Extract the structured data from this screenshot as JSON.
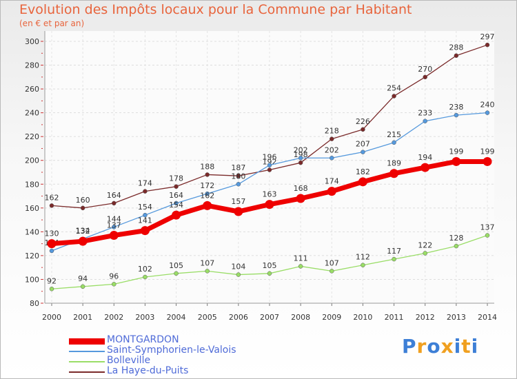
{
  "chart_data": {
    "type": "line",
    "title": "Evolution des Impôts locaux pour la Commune par Habitant",
    "subtitle": "(en € et par an)",
    "xlabel": "",
    "ylabel": "",
    "x": [
      2000,
      2001,
      2002,
      2003,
      2004,
      2005,
      2006,
      2007,
      2008,
      2009,
      2010,
      2011,
      2012,
      2013,
      2014
    ],
    "ylim": [
      80,
      300
    ],
    "yticks": [
      80,
      100,
      120,
      140,
      160,
      180,
      200,
      220,
      240,
      260,
      280,
      300
    ],
    "grid": true,
    "legend_position": "bottom-left",
    "series": [
      {
        "name": "MONTGARDON",
        "color": "#ee0000",
        "values": [
          130,
          132,
          137,
          141,
          154,
          162,
          157,
          163,
          168,
          174,
          182,
          189,
          194,
          199,
          199
        ]
      },
      {
        "name": "Saint-Symphorien-le-Valois",
        "color": "#5599dd",
        "values": [
          124,
          134,
          144,
          154,
          164,
          172,
          180,
          196,
          202,
          202,
          207,
          215,
          233,
          238,
          240
        ]
      },
      {
        "name": "Bolleville",
        "color": "#99dd66",
        "values": [
          92,
          94,
          96,
          102,
          105,
          107,
          104,
          105,
          111,
          107,
          112,
          117,
          122,
          128,
          137
        ]
      },
      {
        "name": "La Haye-du-Puits",
        "color": "#7a2a2a",
        "values": [
          162,
          160,
          164,
          174,
          178,
          188,
          187,
          192,
          198,
          218,
          226,
          254,
          270,
          288,
          297
        ]
      }
    ]
  },
  "logo": {
    "letters": [
      "P",
      "r",
      "o",
      "x",
      "i",
      "t",
      "i"
    ],
    "colors": [
      "#3d7fd6",
      "#f0a020",
      "#3d7fd6",
      "#f0a020",
      "#3d7fd6",
      "#f0a020",
      "#3d7fd6"
    ]
  }
}
